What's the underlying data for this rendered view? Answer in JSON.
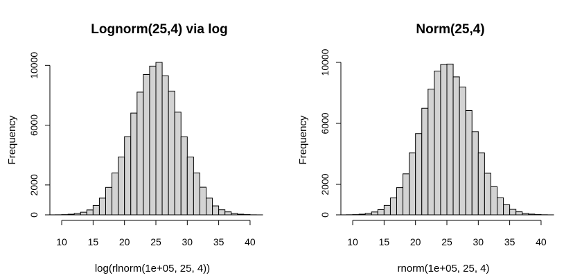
{
  "chart_data": [
    {
      "type": "bar",
      "title": "Lognorm(25,4) via log",
      "xlabel": "log(rlnorm(1e+05, 25, 4))",
      "ylabel": "Frequency",
      "xlim": [
        9,
        41
      ],
      "ylim": [
        0,
        10200
      ],
      "xticks": [
        10,
        15,
        20,
        25,
        30,
        35,
        40
      ],
      "yticks": [
        0,
        2000,
        6000,
        10000
      ],
      "bins": [
        [
          8,
          9
        ],
        [
          9,
          10
        ],
        [
          10,
          11
        ],
        [
          11,
          12
        ],
        [
          12,
          13
        ],
        [
          13,
          14
        ],
        [
          14,
          15
        ],
        [
          15,
          16
        ],
        [
          16,
          17
        ],
        [
          17,
          18
        ],
        [
          18,
          19
        ],
        [
          19,
          20
        ],
        [
          20,
          21
        ],
        [
          21,
          22
        ],
        [
          22,
          23
        ],
        [
          23,
          24
        ],
        [
          24,
          25
        ],
        [
          25,
          26
        ],
        [
          26,
          27
        ],
        [
          27,
          28
        ],
        [
          28,
          29
        ],
        [
          29,
          30
        ],
        [
          30,
          31
        ],
        [
          31,
          32
        ],
        [
          32,
          33
        ],
        [
          33,
          34
        ],
        [
          34,
          35
        ],
        [
          35,
          36
        ],
        [
          36,
          37
        ],
        [
          37,
          38
        ],
        [
          38,
          39
        ],
        [
          39,
          40
        ],
        [
          40,
          41
        ],
        [
          41,
          42
        ]
      ],
      "values": [
        2,
        6,
        17,
        43,
        96,
        178,
        330,
        630,
        1120,
        1840,
        2800,
        3870,
        5230,
        6810,
        8210,
        9390,
        9950,
        10200,
        9300,
        8280,
        6870,
        5220,
        3870,
        2800,
        1850,
        1120,
        600,
        340,
        200,
        90,
        45,
        20,
        5,
        1
      ]
    },
    {
      "type": "bar",
      "title": "Norm(25,4)",
      "xlabel": "rnorm(1e+05, 25, 4)",
      "ylabel": "Frequency",
      "xlim": [
        9,
        41
      ],
      "ylim": [
        0,
        10000
      ],
      "xticks": [
        10,
        15,
        20,
        25,
        30,
        35,
        40
      ],
      "yticks": [
        0,
        2000,
        6000,
        10000
      ],
      "bins": [
        [
          8,
          9
        ],
        [
          9,
          10
        ],
        [
          10,
          11
        ],
        [
          11,
          12
        ],
        [
          12,
          13
        ],
        [
          13,
          14
        ],
        [
          14,
          15
        ],
        [
          15,
          16
        ],
        [
          16,
          17
        ],
        [
          17,
          18
        ],
        [
          18,
          19
        ],
        [
          19,
          20
        ],
        [
          20,
          21
        ],
        [
          21,
          22
        ],
        [
          22,
          23
        ],
        [
          23,
          24
        ],
        [
          24,
          25
        ],
        [
          25,
          26
        ],
        [
          26,
          27
        ],
        [
          27,
          28
        ],
        [
          28,
          29
        ],
        [
          29,
          30
        ],
        [
          30,
          31
        ],
        [
          31,
          32
        ],
        [
          32,
          33
        ],
        [
          33,
          34
        ],
        [
          34,
          35
        ],
        [
          35,
          36
        ],
        [
          36,
          37
        ],
        [
          37,
          38
        ],
        [
          38,
          39
        ],
        [
          39,
          40
        ],
        [
          40,
          41
        ],
        [
          41,
          42
        ]
      ],
      "values": [
        2,
        8,
        18,
        45,
        97,
        190,
        340,
        620,
        1110,
        1790,
        2690,
        4060,
        5330,
        6990,
        8250,
        9430,
        9860,
        9890,
        9050,
        8380,
        6840,
        5460,
        4060,
        2730,
        1850,
        1120,
        660,
        360,
        200,
        90,
        50,
        20,
        8,
        2
      ]
    }
  ]
}
